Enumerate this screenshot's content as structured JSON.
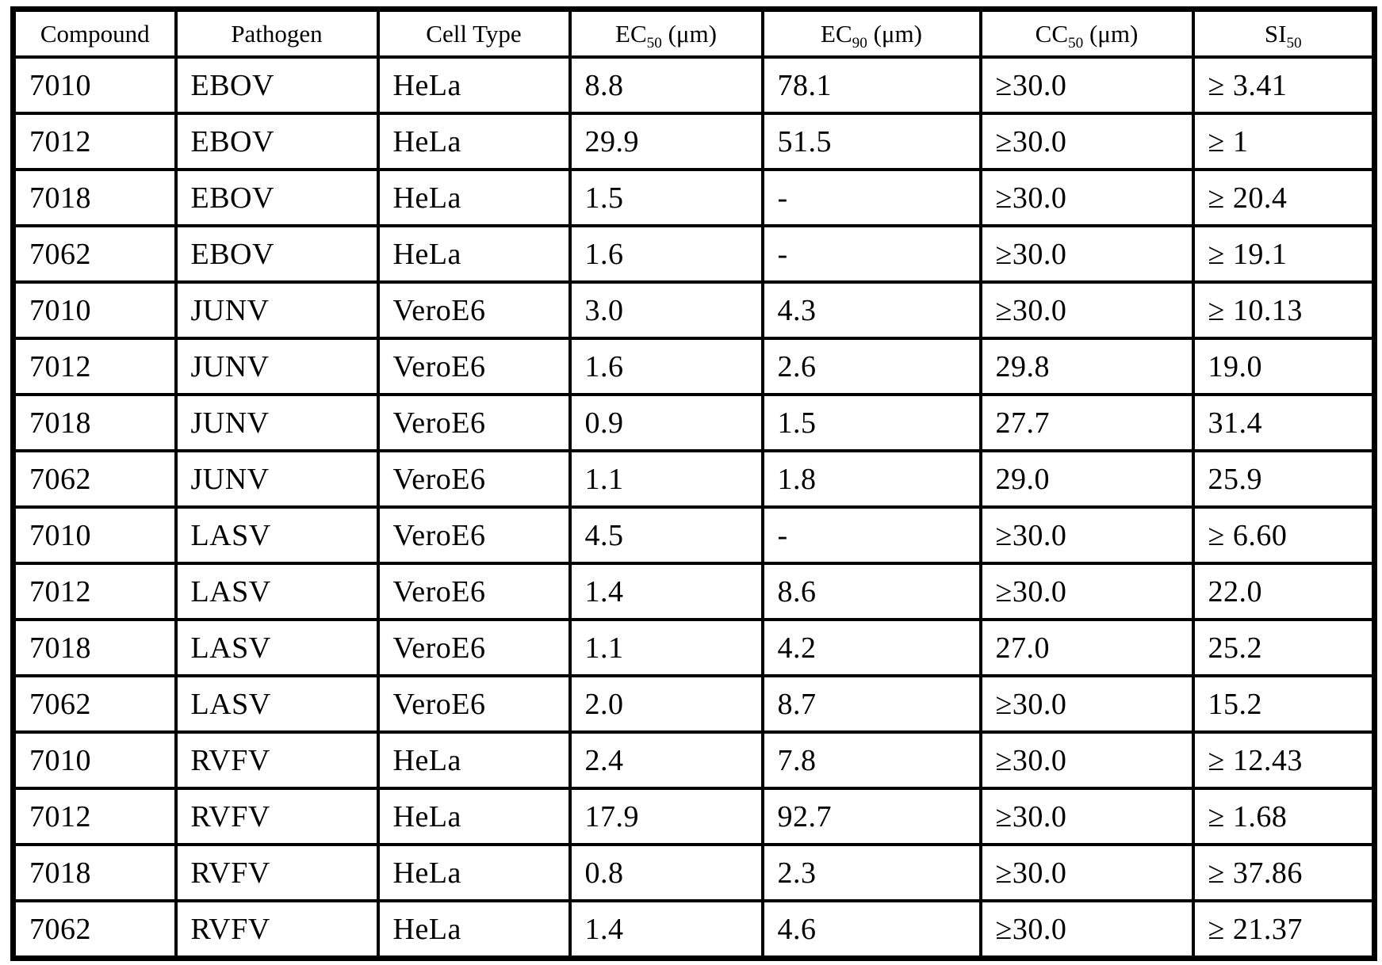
{
  "page": {
    "background_color": "#ffffff",
    "line_color": "#000000",
    "text_color": "#000000"
  },
  "table": {
    "headers": [
      {
        "pre": "Compound",
        "sub": "",
        "post": ""
      },
      {
        "pre": "Pathogen",
        "sub": "",
        "post": ""
      },
      {
        "pre": "Cell Type",
        "sub": "",
        "post": ""
      },
      {
        "pre": "EC",
        "sub": "50",
        "post": " (μm)"
      },
      {
        "pre": "EC",
        "sub": "90",
        "post": " (μm)"
      },
      {
        "pre": "CC",
        "sub": "50",
        "post": " (μm)"
      },
      {
        "pre": "SI",
        "sub": "50",
        "post": ""
      }
    ],
    "rows": [
      {
        "cells": [
          "7010",
          "EBOV",
          "HeLa",
          "8.8",
          "78.1",
          "≥30.0",
          "≥ 3.41"
        ]
      },
      {
        "cells": [
          "7012",
          "EBOV",
          "HeLa",
          "29.9",
          "51.5",
          "≥30.0",
          "≥ 1"
        ]
      },
      {
        "cells": [
          "7018",
          "EBOV",
          "HeLa",
          "1.5",
          "-",
          "≥30.0",
          "≥ 20.4"
        ]
      },
      {
        "cells": [
          "7062",
          "EBOV",
          "HeLa",
          "1.6",
          "-",
          "≥30.0",
          "≥ 19.1"
        ]
      },
      {
        "cells": [
          "7010",
          "JUNV",
          "VeroE6",
          "3.0",
          "4.3",
          "≥30.0",
          "≥ 10.13"
        ]
      },
      {
        "cells": [
          "7012",
          "JUNV",
          "VeroE6",
          "1.6",
          "2.6",
          "29.8",
          "19.0"
        ]
      },
      {
        "cells": [
          "7018",
          "JUNV",
          "VeroE6",
          "0.9",
          "1.5",
          "27.7",
          "31.4"
        ]
      },
      {
        "cells": [
          "7062",
          "JUNV",
          "VeroE6",
          "1.1",
          "1.8",
          "29.0",
          "25.9"
        ]
      },
      {
        "cells": [
          "7010",
          "LASV",
          "VeroE6",
          "4.5",
          "-",
          "≥30.0",
          "≥ 6.60"
        ]
      },
      {
        "cells": [
          "7012",
          "LASV",
          "VeroE6",
          "1.4",
          "8.6",
          "≥30.0",
          "22.0"
        ]
      },
      {
        "cells": [
          "7018",
          "LASV",
          "VeroE6",
          "1.1",
          "4.2",
          "27.0",
          "25.2"
        ]
      },
      {
        "cells": [
          "7062",
          "LASV",
          "VeroE6",
          "2.0",
          "8.7",
          "≥30.0",
          "15.2"
        ]
      },
      {
        "cells": [
          "7010",
          "RVFV",
          "HeLa",
          "2.4",
          "7.8",
          "≥30.0",
          "≥ 12.43"
        ]
      },
      {
        "cells": [
          "7012",
          "RVFV",
          "HeLa",
          "17.9",
          "92.7",
          "≥30.0",
          "≥ 1.68"
        ]
      },
      {
        "cells": [
          "7018",
          "RVFV",
          "HeLa",
          "0.8",
          "2.3",
          "≥30.0",
          "≥ 37.86"
        ]
      },
      {
        "cells": [
          "7062",
          "RVFV",
          "HeLa",
          "1.4",
          "4.6",
          "≥30.0",
          "≥ 21.37"
        ]
      }
    ]
  }
}
